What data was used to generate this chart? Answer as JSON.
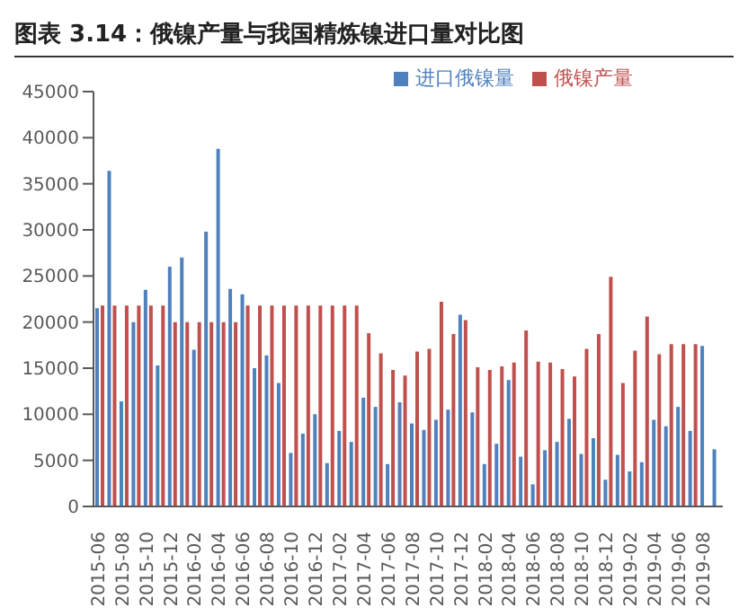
{
  "chart_data": {
    "type": "bar",
    "title": "图表 3.14：俄镍产量与我国精炼镍进口量对比图",
    "categories": [
      "2015-06",
      null,
      "2015-08",
      null,
      "2015-10",
      null,
      "2015-12",
      null,
      "2016-02",
      null,
      "2016-04",
      null,
      "2016-06",
      null,
      "2016-08",
      null,
      "2016-10",
      null,
      "2016-12",
      null,
      "2017-02",
      null,
      "2017-04",
      null,
      "2017-06",
      null,
      "2017-08",
      null,
      "2017-10",
      null,
      "2017-12",
      null,
      "2018-02",
      null,
      "2018-04",
      null,
      "2018-06",
      null,
      "2018-08",
      null,
      "2018-10",
      null,
      "2018-12",
      null,
      "2019-02",
      null,
      "2019-04",
      null,
      "2019-06",
      null,
      "2019-08",
      null
    ],
    "series": [
      {
        "name": "进口俄镍量",
        "color": "#4f81bd",
        "values": [
          21500,
          36400,
          11400,
          20000,
          23500,
          15300,
          26000,
          27000,
          17000,
          29800,
          38800,
          23600,
          23000,
          15000,
          16400,
          13400,
          5800,
          7900,
          10000,
          4700,
          8200,
          7000,
          11800,
          10800,
          4600,
          11300,
          9000,
          8300,
          9400,
          10500,
          20800,
          10200,
          4600,
          6800,
          13700,
          5400,
          2400,
          6100,
          7000,
          9500,
          5700,
          7400,
          2900,
          5600,
          3800,
          4800,
          9400,
          8700,
          10800,
          8200,
          17400,
          6200
        ]
      },
      {
        "name": "俄镍产量",
        "color": "#c0504d",
        "values": [
          21800,
          21800,
          21800,
          21800,
          21800,
          21800,
          20000,
          20000,
          20000,
          20000,
          20000,
          20000,
          21800,
          21800,
          21800,
          21800,
          21800,
          21800,
          21800,
          21800,
          21800,
          21800,
          18800,
          16600,
          14800,
          14200,
          16800,
          17100,
          22200,
          18700,
          20200,
          15100,
          14800,
          15200,
          15600,
          19100,
          15700,
          15600,
          14900,
          14100,
          17100,
          18700,
          24900,
          13400,
          16900,
          20600,
          16500,
          17600,
          17600,
          17600,
          null,
          null
        ]
      }
    ],
    "ylim": [
      0,
      45000
    ],
    "yticks": [
      0,
      5000,
      10000,
      15000,
      20000,
      25000,
      30000,
      35000,
      40000,
      45000
    ],
    "legend": "top right"
  }
}
